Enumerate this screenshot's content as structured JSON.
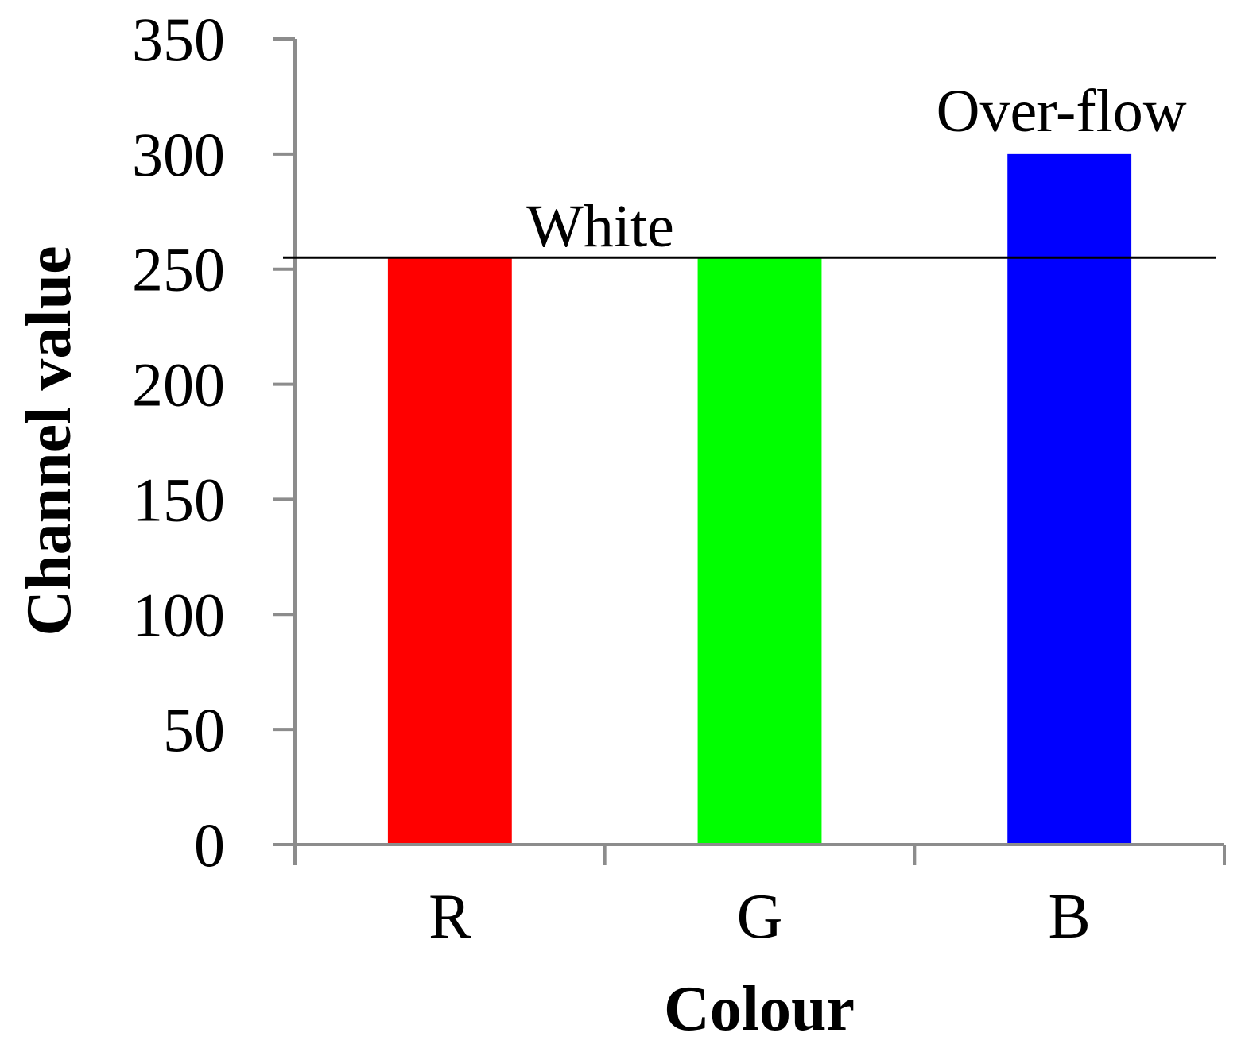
{
  "chart_data": {
    "type": "bar",
    "categories": [
      "R",
      "G",
      "B"
    ],
    "values": [
      255,
      255,
      300
    ],
    "colors": [
      "#ff0000",
      "#00ff00",
      "#0000ff"
    ],
    "xlabel": "Colour",
    "ylabel": "Channel value",
    "ylim": [
      0,
      350
    ],
    "yticks": [
      0,
      50,
      100,
      150,
      200,
      250,
      300,
      350
    ],
    "ytick_labels": [
      "0",
      "50",
      "100",
      "150",
      "200",
      "250",
      "300",
      "350"
    ],
    "grid": false,
    "legend": "none",
    "reference_line": {
      "value": 255,
      "label": "White"
    },
    "annotations": [
      {
        "text": "Over-flow",
        "category": "B"
      }
    ],
    "axis_color": "#8c8c8c"
  }
}
